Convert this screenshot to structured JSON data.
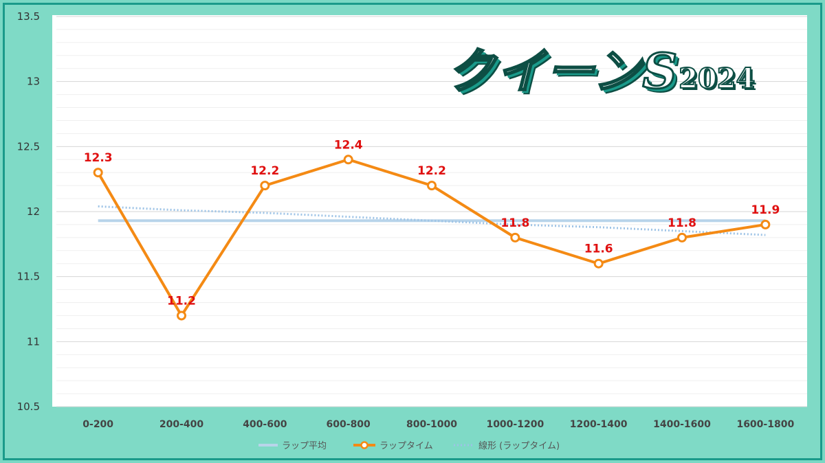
{
  "title": {
    "main": "クイーンS",
    "year": "2024"
  },
  "colors": {
    "background": "#7fdac6",
    "lap_time": "#f48a14",
    "lap_avg": "#b8d4ea",
    "trend": "#9dc3e6",
    "data_label": "#e01010"
  },
  "chart_data": {
    "type": "line",
    "categories": [
      "0-200",
      "200-400",
      "400-600",
      "600-800",
      "800-1000",
      "1000-1200",
      "1200-1400",
      "1400-1600",
      "1600-1800"
    ],
    "ylim": [
      10.5,
      13.5
    ],
    "yticks": [
      "13.5",
      "13",
      "12.5",
      "12",
      "11.5",
      "11",
      "10.5"
    ],
    "grid": true,
    "legend_position": "bottom",
    "series": [
      {
        "name": "ラップ平均",
        "values": [
          11.93,
          11.93,
          11.93,
          11.93,
          11.93,
          11.93,
          11.93,
          11.93,
          11.93
        ]
      },
      {
        "name": "ラップタイム",
        "values": [
          12.3,
          11.2,
          12.2,
          12.4,
          12.2,
          11.8,
          11.6,
          11.8,
          11.9
        ],
        "labels": [
          "12.3",
          "11.2",
          "12.2",
          "12.4",
          "12.2",
          "11.8",
          "11.6",
          "11.8",
          "11.9"
        ]
      },
      {
        "name": "線形 (ラップタイム)",
        "values": [
          12.04,
          12.01,
          11.99,
          11.96,
          11.93,
          11.9,
          11.88,
          11.85,
          11.82
        ]
      }
    ]
  }
}
